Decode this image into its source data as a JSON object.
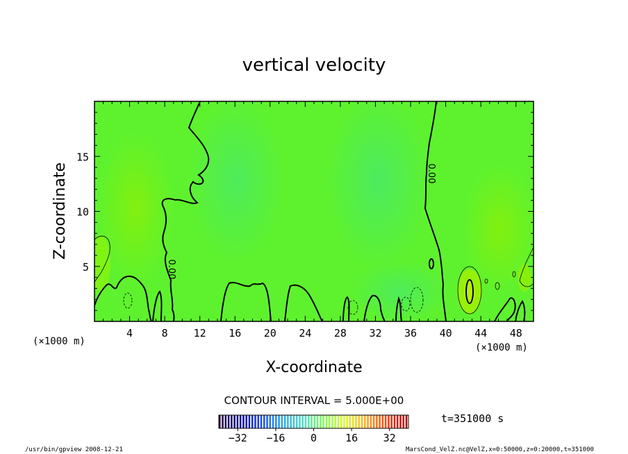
{
  "chart_data": {
    "type": "heatmap",
    "title": "vertical velocity",
    "xlabel": "X-coordinate",
    "ylabel": "Z-coordinate",
    "x_unit": "(×1000 m)",
    "y_unit": "(×1000 m)",
    "xlim": [
      0,
      50
    ],
    "ylim": [
      0,
      20
    ],
    "xticks": [
      4,
      8,
      12,
      16,
      20,
      24,
      28,
      32,
      36,
      40,
      44,
      48
    ],
    "yticks": [
      5,
      10,
      15
    ],
    "contour_interval_text": "CONTOUR INTERVAL = 5.000E+00",
    "zero_contour_label": "0.00",
    "colorbar": {
      "ticks": [
        -32,
        -16,
        0,
        16,
        32
      ],
      "range": [
        -40,
        40
      ],
      "colors": [
        "#2a0040",
        "#0b0b8f",
        "#1e4be0",
        "#2aa6e8",
        "#4fe0c8",
        "#7fff5a",
        "#d8ff2a",
        "#ffb020",
        "#ff4a10",
        "#b00000"
      ]
    },
    "background_value": 0,
    "time_label": "t=351000 s"
  },
  "footer": {
    "left": "/usr/bin/gpview  2008-12-21",
    "right": "MarsCond_VelZ.nc@VelZ,x=0:50000,z=0:20000,t=351000"
  }
}
